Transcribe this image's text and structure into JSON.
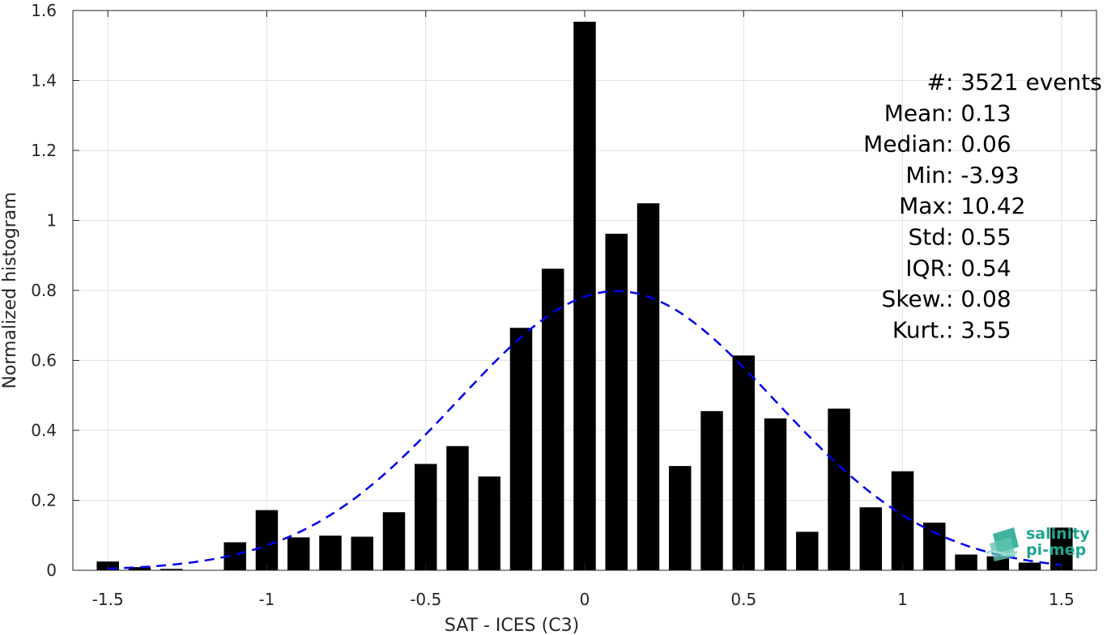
{
  "chart_data": {
    "type": "bar",
    "xlabel": "SAT - ICES (C3)",
    "ylabel": "Normalized histogram",
    "xlim": [
      -1.61,
      1.61
    ],
    "ylim": [
      0,
      1.6
    ],
    "xticks": [
      -1.5,
      -1,
      -0.5,
      0,
      0.5,
      1,
      1.5
    ],
    "xtick_labels": [
      "-1.5",
      "-1",
      "-0.5",
      "0",
      "0.5",
      "1",
      "1.5"
    ],
    "yticks": [
      0,
      0.2,
      0.4,
      0.6,
      0.8,
      1,
      1.2,
      1.4,
      1.6
    ],
    "ytick_labels": [
      "0",
      "0.2",
      "0.4",
      "0.6",
      "0.8",
      "1",
      "1.2",
      "1.4",
      "1.6"
    ],
    "grid": true,
    "bar_width": 0.07,
    "bins": [
      -1.5,
      -1.4,
      -1.3,
      -1.2,
      -1.1,
      -1.0,
      -0.9,
      -0.8,
      -0.7,
      -0.6,
      -0.5,
      -0.4,
      -0.3,
      -0.2,
      -0.1,
      0.0,
      0.1,
      0.2,
      0.3,
      0.4,
      0.5,
      0.6,
      0.7,
      0.8,
      0.9,
      1.0,
      1.1,
      1.2,
      1.3,
      1.4,
      1.5
    ],
    "values": [
      0.025,
      0.009,
      0.004,
      0.0,
      0.08,
      0.172,
      0.094,
      0.099,
      0.096,
      0.166,
      0.304,
      0.355,
      0.268,
      0.693,
      0.862,
      1.568,
      0.962,
      1.049,
      0.298,
      0.455,
      0.614,
      0.434,
      0.11,
      0.462,
      0.18,
      0.283,
      0.136,
      0.045,
      0.04,
      0.022,
      0.122
    ],
    "fit_curve": {
      "style": "dashed",
      "color": "#0000ee",
      "mean": 0.1,
      "std": 0.5,
      "x_range": [
        -1.5,
        1.5
      ]
    },
    "stats": [
      {
        "key": "#",
        "sep": "  : ",
        "value": "3521 events"
      },
      {
        "key": "Mean",
        "sep": " : ",
        "value": "0.13"
      },
      {
        "key": "Median",
        "sep": " : ",
        "value": "0.06"
      },
      {
        "key": "Min",
        "sep": " : ",
        "value": "-3.93"
      },
      {
        "key": "Max",
        "sep": " : ",
        "value": "10.42"
      },
      {
        "key": "Std",
        "sep": " : ",
        "value": "0.55"
      },
      {
        "key": "IQR",
        "sep": " : ",
        "value": "0.54"
      },
      {
        "key": "Skew.",
        "sep": " : ",
        "value": "0.08"
      },
      {
        "key": "Kurt.",
        "sep": " : ",
        "value": "3.55"
      }
    ],
    "bar_color": "#000000"
  },
  "logo": {
    "line1": "salinity",
    "line2": "pi-mep",
    "color": "#1fa68f"
  }
}
